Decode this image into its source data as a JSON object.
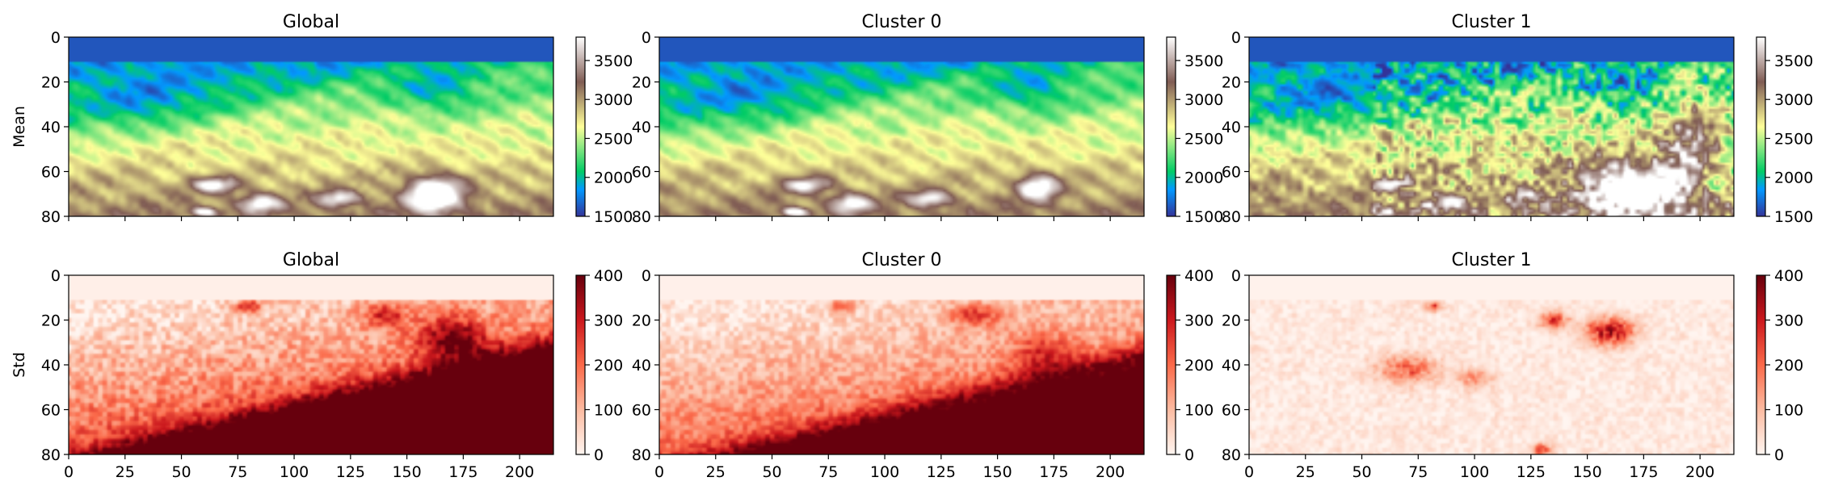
{
  "figure": {
    "background": "#ffffff"
  },
  "chart_data": [
    {
      "type": "heatmap",
      "title": "Global",
      "ylabel": "Mean",
      "xlabel": "",
      "xlim": [
        0,
        215
      ],
      "ylim": [
        80,
        0
      ],
      "xticks": [],
      "yticks": [
        0,
        20,
        40,
        60,
        80
      ],
      "colormap": "terrain",
      "colorbar": {
        "range": [
          1500,
          3800
        ],
        "ticks": [
          1500,
          2000,
          2500,
          3000,
          3500
        ]
      },
      "field": "mean_global"
    },
    {
      "type": "heatmap",
      "title": "Cluster 0",
      "ylabel": "",
      "xlabel": "",
      "xlim": [
        0,
        215
      ],
      "ylim": [
        80,
        0
      ],
      "xticks": [],
      "yticks": [
        0,
        20,
        40,
        60,
        80
      ],
      "colormap": "terrain",
      "colorbar": {
        "range": [
          1500,
          3800
        ],
        "ticks": [
          1500,
          2000,
          2500,
          3000,
          3500
        ]
      },
      "field": "mean_c0"
    },
    {
      "type": "heatmap",
      "title": "Cluster 1",
      "ylabel": "",
      "xlabel": "",
      "xlim": [
        0,
        215
      ],
      "ylim": [
        80,
        0
      ],
      "xticks": [],
      "yticks": [
        0,
        20,
        40,
        60,
        80
      ],
      "colormap": "terrain",
      "colorbar": {
        "range": [
          1500,
          3800
        ],
        "ticks": [
          1500,
          2000,
          2500,
          3000,
          3500
        ]
      },
      "field": "mean_c1"
    },
    {
      "type": "heatmap",
      "title": "Global",
      "ylabel": "Std",
      "xlabel": "",
      "xlim": [
        0,
        215
      ],
      "ylim": [
        80,
        0
      ],
      "xticks": [
        0,
        25,
        50,
        75,
        100,
        125,
        150,
        175,
        200
      ],
      "yticks": [
        0,
        20,
        40,
        60,
        80
      ],
      "colormap": "reds",
      "colorbar": {
        "range": [
          0,
          400
        ],
        "ticks": [
          0,
          100,
          200,
          300,
          400
        ]
      },
      "field": "std_global"
    },
    {
      "type": "heatmap",
      "title": "Cluster 0",
      "ylabel": "",
      "xlabel": "",
      "xlim": [
        0,
        215
      ],
      "ylim": [
        80,
        0
      ],
      "xticks": [
        0,
        25,
        50,
        75,
        100,
        125,
        150,
        175,
        200
      ],
      "yticks": [
        0,
        20,
        40,
        60,
        80
      ],
      "colormap": "reds",
      "colorbar": {
        "range": [
          0,
          400
        ],
        "ticks": [
          0,
          100,
          200,
          300,
          400
        ]
      },
      "field": "std_c0"
    },
    {
      "type": "heatmap",
      "title": "Cluster 1",
      "ylabel": "",
      "xlabel": "",
      "xlim": [
        0,
        215
      ],
      "ylim": [
        80,
        0
      ],
      "xticks": [
        0,
        25,
        50,
        75,
        100,
        125,
        150,
        175,
        200
      ],
      "yticks": [
        0,
        20,
        40,
        60,
        80
      ],
      "colormap": "reds",
      "colorbar": {
        "range": [
          0,
          400
        ],
        "ticks": [
          0,
          100,
          200,
          300,
          400
        ]
      },
      "field": "std_c1"
    }
  ]
}
